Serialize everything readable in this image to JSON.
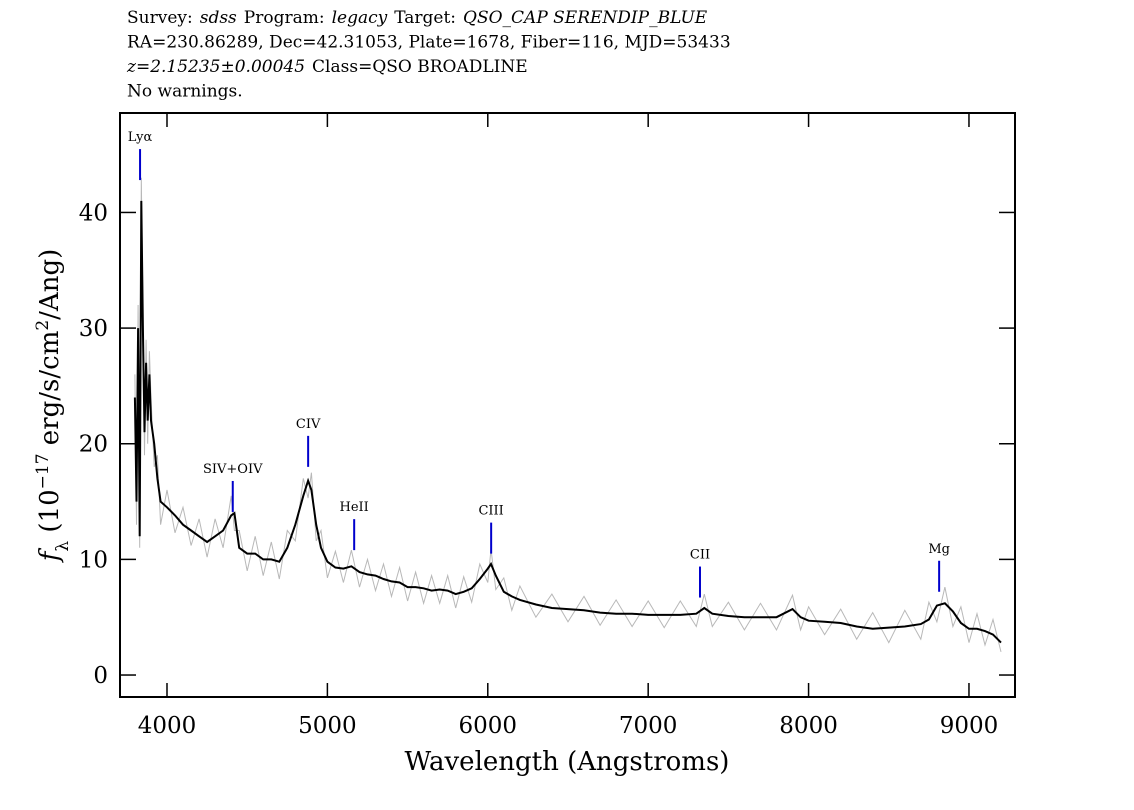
{
  "chart_data": {
    "type": "line",
    "title_lines": [
      [
        {
          "text": "Survey:",
          "italic": false
        },
        {
          "text": "sdss",
          "italic": true
        },
        {
          "text": "Program:",
          "italic": false
        },
        {
          "text": "legacy",
          "italic": true
        },
        {
          "text": "Target:",
          "italic": false
        },
        {
          "text": "QSO_CAP SERENDIP_BLUE",
          "italic": true
        }
      ],
      [
        {
          "text": "RA=230.86289, Dec=42.31053, Plate=1678, Fiber=116, MJD=53433",
          "italic": false
        }
      ],
      [
        {
          "text": "z=2.15235±0.00045",
          "italic": true
        },
        {
          "text": "Class=QSO BROADLINE",
          "italic": false
        }
      ],
      [
        {
          "text": "No warnings.",
          "italic": false
        }
      ]
    ],
    "xlabel": "Wavelength (Angstroms)",
    "ylabel_parts": [
      {
        "text": "f",
        "style": "italic"
      },
      {
        "text": "λ",
        "style": "sub"
      },
      {
        "text": " (10",
        "style": "normal"
      },
      {
        "text": "−17",
        "style": "sup"
      },
      {
        "text": " erg/s/cm",
        "style": "normal"
      },
      {
        "text": "2",
        "style": "sup"
      },
      {
        "text": "/Ang)",
        "style": "normal"
      }
    ],
    "xlim": [
      3707,
      9287
    ],
    "ylim": [
      -1.9,
      48.6
    ],
    "xticks": [
      4000,
      5000,
      6000,
      7000,
      8000,
      9000
    ],
    "yticks": [
      0,
      10,
      20,
      30,
      40
    ],
    "x": [
      3800,
      3810,
      3820,
      3830,
      3840,
      3850,
      3860,
      3870,
      3880,
      3890,
      3900,
      3920,
      3940,
      3960,
      4000,
      4050,
      4100,
      4150,
      4200,
      4250,
      4300,
      4350,
      4400,
      4420,
      4450,
      4500,
      4550,
      4600,
      4650,
      4700,
      4750,
      4800,
      4850,
      4880,
      4900,
      4930,
      4960,
      5000,
      5050,
      5100,
      5150,
      5200,
      5250,
      5300,
      5350,
      5400,
      5450,
      5500,
      5550,
      5600,
      5650,
      5700,
      5750,
      5800,
      5850,
      5900,
      5950,
      6000,
      6020,
      6050,
      6100,
      6150,
      6200,
      6300,
      6400,
      6500,
      6600,
      6700,
      6800,
      6900,
      7000,
      7100,
      7200,
      7300,
      7350,
      7400,
      7500,
      7600,
      7700,
      7800,
      7900,
      7950,
      8000,
      8100,
      8200,
      8300,
      8400,
      8500,
      8600,
      8700,
      8750,
      8800,
      8850,
      8900,
      8950,
      9000,
      9050,
      9100,
      9150,
      9200
    ],
    "series": [
      {
        "color": "#b8b8b8",
        "width": 1,
        "values": [
          26,
          13,
          32,
          11,
          43,
          32,
          19,
          29,
          20,
          28,
          24,
          18,
          19,
          13,
          16,
          12.3,
          14.5,
          11.2,
          13.5,
          10.2,
          13.5,
          11,
          15.5,
          12.5,
          12.5,
          9,
          12,
          8.6,
          11.5,
          8.3,
          12.5,
          11.6,
          17,
          15.3,
          17.5,
          11.6,
          12.5,
          8.4,
          10.7,
          8,
          10.8,
          7.6,
          10,
          7.3,
          9.6,
          6.8,
          9.3,
          6.4,
          8.9,
          6.2,
          8.6,
          6.2,
          8.6,
          5.8,
          8.5,
          6.3,
          9.6,
          8,
          10.9,
          7.4,
          8.4,
          5.6,
          7.7,
          5,
          7,
          4.6,
          6.8,
          4.3,
          6.5,
          4.2,
          6.4,
          4.1,
          6.4,
          4.2,
          7,
          4.2,
          6.3,
          3.9,
          6.2,
          3.9,
          6.9,
          3.9,
          5.9,
          3.5,
          5.7,
          3.1,
          5.4,
          2.8,
          5.6,
          3.1,
          6.3,
          4.6,
          7.6,
          4.2,
          5.9,
          2.8,
          5.3,
          2.6,
          4.8,
          2.0
        ]
      },
      {
        "color": "#000000",
        "width": 2,
        "values": [
          24,
          15,
          30,
          12,
          41,
          30,
          21,
          27,
          22,
          26,
          22,
          20,
          17,
          15,
          14.5,
          13.8,
          13,
          12.5,
          12,
          11.5,
          12,
          12.5,
          13.8,
          14,
          11,
          10.5,
          10.5,
          10,
          10,
          9.8,
          11,
          13,
          15.5,
          16.8,
          16,
          13,
          11,
          9.8,
          9.3,
          9.2,
          9.4,
          8.9,
          8.7,
          8.6,
          8.3,
          8.1,
          8,
          7.6,
          7.6,
          7.5,
          7.3,
          7.4,
          7.3,
          7.0,
          7.2,
          7.5,
          8.3,
          9.2,
          9.6,
          8.6,
          7.2,
          6.8,
          6.5,
          6.1,
          5.8,
          5.7,
          5.6,
          5.4,
          5.3,
          5.3,
          5.2,
          5.2,
          5.2,
          5.3,
          5.8,
          5.3,
          5.1,
          5.0,
          5.0,
          5.0,
          5.7,
          5.0,
          4.7,
          4.6,
          4.5,
          4.2,
          4.0,
          4.1,
          4.2,
          4.4,
          4.8,
          6.0,
          6.2,
          5.5,
          4.5,
          4.0,
          4.0,
          3.8,
          3.5,
          2.8
        ]
      }
    ],
    "line_marker_color": "#0000cc",
    "annotations": [
      {
        "label": "Lyα",
        "x": 3832,
        "y": 42.8
      },
      {
        "label": "SIV+OIV",
        "x": 4410,
        "y": 14.1
      },
      {
        "label": "CIV",
        "x": 4880,
        "y": 18.0
      },
      {
        "label": "HeII",
        "x": 5167,
        "y": 10.8
      },
      {
        "label": "CIII",
        "x": 6021,
        "y": 10.5
      },
      {
        "label": "CII",
        "x": 7323,
        "y": 6.7
      },
      {
        "label": "Mg",
        "x": 8814,
        "y": 7.2
      }
    ]
  }
}
